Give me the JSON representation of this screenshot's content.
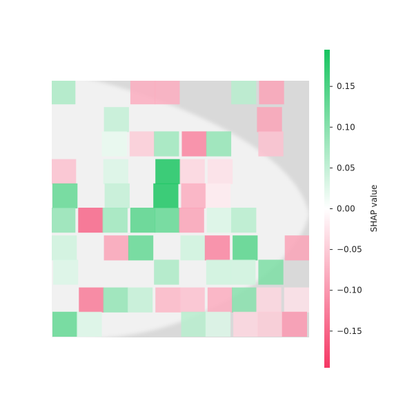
{
  "chart_data": {
    "type": "heatmap",
    "title": "",
    "colorbar": {
      "label": "SHAP value",
      "ticks": [
        {
          "value": 0.15,
          "label": "0.15"
        },
        {
          "value": 0.1,
          "label": "0.10"
        },
        {
          "value": 0.05,
          "label": "0.05"
        },
        {
          "value": 0.0,
          "label": "0.00"
        },
        {
          "value": -0.05,
          "label": "−0.05"
        },
        {
          "value": -0.1,
          "label": "−0.10"
        },
        {
          "value": -0.15,
          "label": "−0.15"
        }
      ],
      "range": [
        -0.195,
        0.195
      ],
      "positive_color": "#16c45f",
      "negative_color": "#f53764",
      "neutral_color": "#ffffff"
    },
    "grid": {
      "rows": 10,
      "cols": 10,
      "description_rows_top_to_bottom": true,
      "values": [
        [
          0.07,
          0.0,
          0.0,
          -0.08,
          -0.08,
          null,
          null,
          0.06,
          -0.09,
          null
        ],
        [
          0.0,
          0.0,
          0.05,
          0.0,
          0.0,
          null,
          null,
          null,
          -0.09,
          null
        ],
        [
          0.0,
          0.0,
          0.02,
          -0.05,
          0.08,
          -0.12,
          0.09,
          null,
          -0.06,
          null
        ],
        [
          -0.06,
          0.0,
          0.03,
          0.0,
          0.19,
          -0.04,
          -0.03,
          null,
          null,
          null
        ],
        [
          0.13,
          0.0,
          0.05,
          0.0,
          0.19,
          -0.08,
          -0.02,
          0.0,
          null,
          null
        ],
        [
          0.09,
          -0.15,
          0.08,
          0.14,
          0.13,
          -0.09,
          0.03,
          0.06,
          0.0,
          null
        ],
        [
          0.04,
          0.0,
          -0.09,
          0.13,
          0.0,
          0.04,
          -0.12,
          0.14,
          0.0,
          -0.09
        ],
        [
          0.03,
          0.0,
          0.0,
          0.0,
          0.07,
          0.0,
          0.04,
          0.04,
          0.11,
          0.0
        ],
        [
          0.0,
          -0.13,
          0.09,
          0.05,
          -0.07,
          -0.06,
          -0.08,
          0.1,
          -0.04,
          -0.03
        ],
        [
          0.13,
          0.03,
          0.0,
          0.0,
          0.0,
          0.06,
          0.03,
          -0.04,
          -0.05,
          -0.1
        ]
      ]
    }
  }
}
